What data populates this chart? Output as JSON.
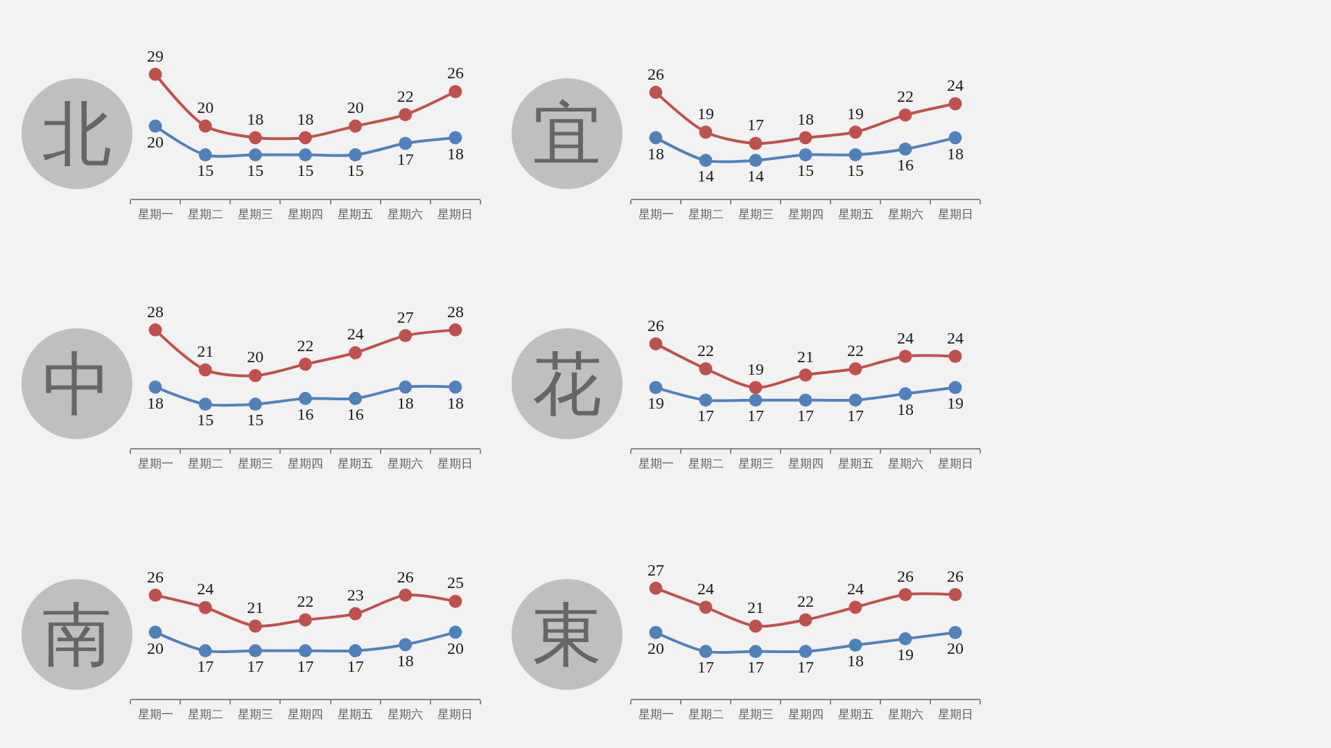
{
  "chart_data": [
    {
      "type": "line",
      "title": "北",
      "categories": [
        "星期一",
        "星期二",
        "星期三",
        "星期四",
        "星期五",
        "星期六",
        "星期日"
      ],
      "series": [
        {
          "color": "#c0504d",
          "values": [
            29,
            20,
            18,
            18,
            20,
            22,
            26
          ]
        },
        {
          "color": "#4f81bd",
          "values": [
            20,
            15,
            15,
            15,
            15,
            17,
            18
          ]
        }
      ],
      "tick_labels": "x",
      "data_labels": true,
      "marker": "circle",
      "line_style": "solid"
    },
    {
      "type": "line",
      "title": "宜",
      "categories": [
        "星期一",
        "星期二",
        "星期三",
        "星期四",
        "星期五",
        "星期六",
        "星期日"
      ],
      "series": [
        {
          "color": "#c0504d",
          "values": [
            26,
            19,
            17,
            18,
            19,
            22,
            24
          ]
        },
        {
          "color": "#4f81bd",
          "values": [
            18,
            14,
            14,
            15,
            15,
            16,
            18
          ]
        }
      ],
      "tick_labels": "x",
      "data_labels": true,
      "marker": "circle",
      "line_style": "solid"
    },
    {
      "type": "line",
      "title": "中",
      "categories": [
        "星期一",
        "星期二",
        "星期三",
        "星期四",
        "星期五",
        "星期六",
        "星期日"
      ],
      "series": [
        {
          "color": "#c0504d",
          "values": [
            28,
            21,
            20,
            22,
            24,
            27,
            28
          ]
        },
        {
          "color": "#4f81bd",
          "values": [
            18,
            15,
            15,
            16,
            16,
            18,
            18
          ]
        }
      ],
      "tick_labels": "x",
      "data_labels": true,
      "marker": "circle",
      "line_style": "solid"
    },
    {
      "type": "line",
      "title": "花",
      "categories": [
        "星期一",
        "星期二",
        "星期三",
        "星期四",
        "星期五",
        "星期六",
        "星期日"
      ],
      "series": [
        {
          "color": "#c0504d",
          "values": [
            26,
            22,
            19,
            21,
            22,
            24,
            24
          ]
        },
        {
          "color": "#4f81bd",
          "values": [
            19,
            17,
            17,
            17,
            17,
            18,
            19
          ]
        }
      ],
      "tick_labels": "x",
      "data_labels": true,
      "marker": "circle",
      "line_style": "solid"
    },
    {
      "type": "line",
      "title": "南",
      "categories": [
        "星期一",
        "星期二",
        "星期三",
        "星期四",
        "星期五",
        "星期六",
        "星期日"
      ],
      "series": [
        {
          "color": "#c0504d",
          "values": [
            26,
            24,
            21,
            22,
            23,
            26,
            25
          ]
        },
        {
          "color": "#4f81bd",
          "values": [
            20,
            17,
            17,
            17,
            17,
            18,
            20
          ]
        }
      ],
      "tick_labels": "x",
      "data_labels": true,
      "marker": "circle",
      "line_style": "solid"
    },
    {
      "type": "line",
      "title": "東",
      "categories": [
        "星期一",
        "星期二",
        "星期三",
        "星期四",
        "星期五",
        "星期六",
        "星期日"
      ],
      "series": [
        {
          "color": "#c0504d",
          "values": [
            27,
            24,
            21,
            22,
            24,
            26,
            26
          ]
        },
        {
          "color": "#4f81bd",
          "values": [
            20,
            17,
            17,
            17,
            18,
            19,
            20
          ]
        }
      ],
      "tick_labels": "x",
      "data_labels": true,
      "marker": "circle",
      "line_style": "solid"
    }
  ]
}
